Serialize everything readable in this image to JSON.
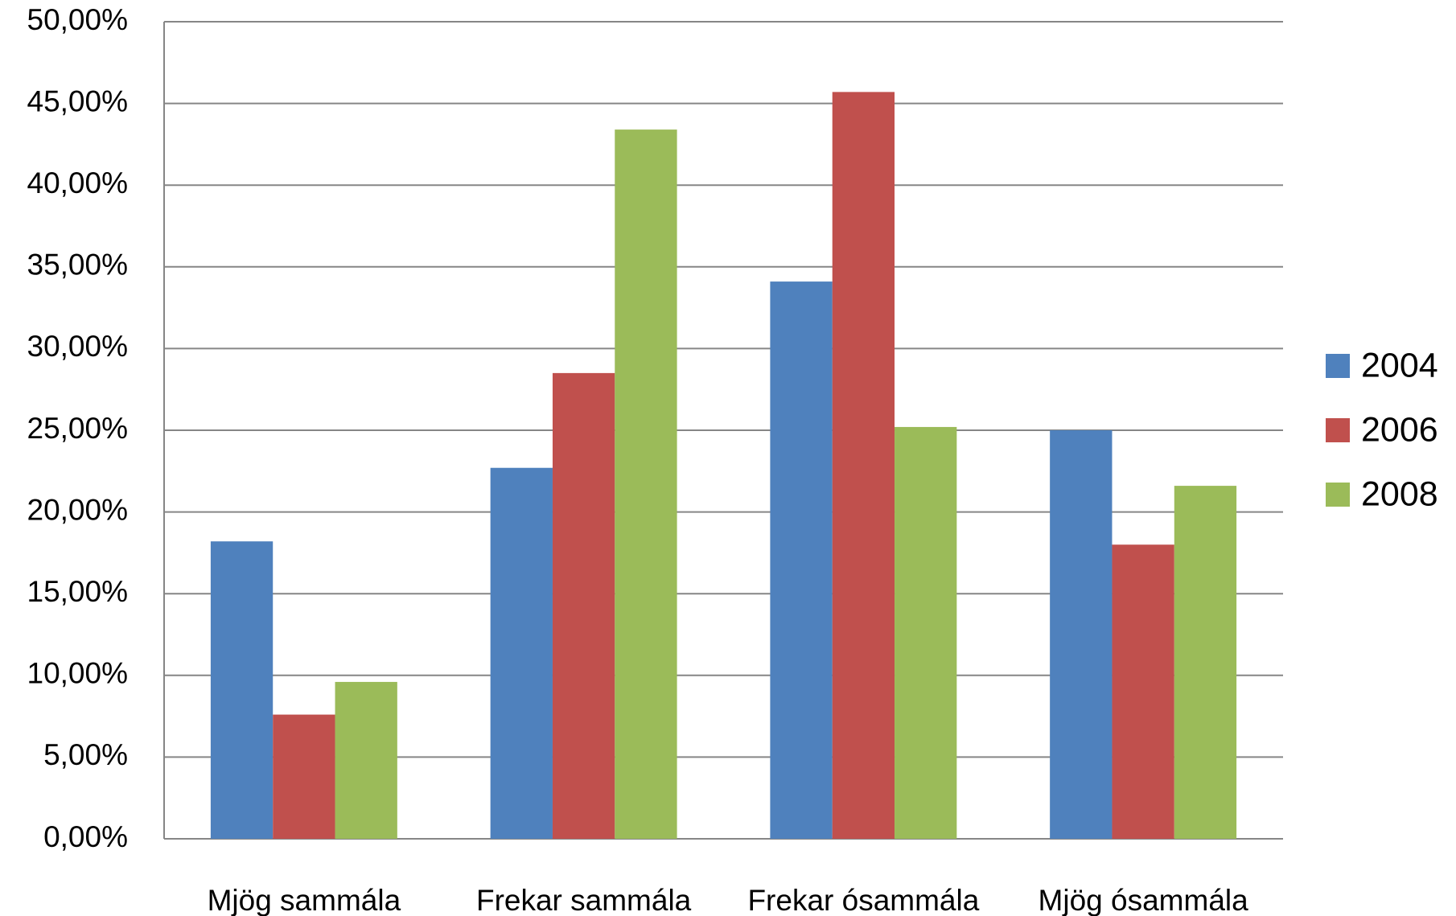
{
  "chart_data": {
    "type": "bar",
    "categories": [
      "Mjög sammála",
      "Frekar sammála",
      "Frekar ósammála",
      "Mjög ósammála"
    ],
    "series": [
      {
        "name": "2004",
        "color": "#4f81bd",
        "values": [
          18.2,
          22.7,
          34.1,
          25.0
        ]
      },
      {
        "name": "2006",
        "color": "#c0504d",
        "values": [
          7.6,
          28.5,
          45.7,
          18.0
        ]
      },
      {
        "name": "2008",
        "color": "#9bbb59",
        "values": [
          9.6,
          43.4,
          25.2,
          21.6
        ]
      }
    ],
    "ylim": [
      0,
      50
    ],
    "yticks": [
      {
        "value": 0,
        "label": "0,00%"
      },
      {
        "value": 5,
        "label": "5,00%"
      },
      {
        "value": 10,
        "label": "10,00%"
      },
      {
        "value": 15,
        "label": "15,00%"
      },
      {
        "value": 20,
        "label": "20,00%"
      },
      {
        "value": 25,
        "label": "25,00%"
      },
      {
        "value": 30,
        "label": "30,00%"
      },
      {
        "value": 35,
        "label": "35,00%"
      },
      {
        "value": 40,
        "label": "40,00%"
      },
      {
        "value": 45,
        "label": "45,00%"
      },
      {
        "value": 50,
        "label": "50,00%"
      }
    ],
    "grid": true,
    "legend": "right"
  }
}
